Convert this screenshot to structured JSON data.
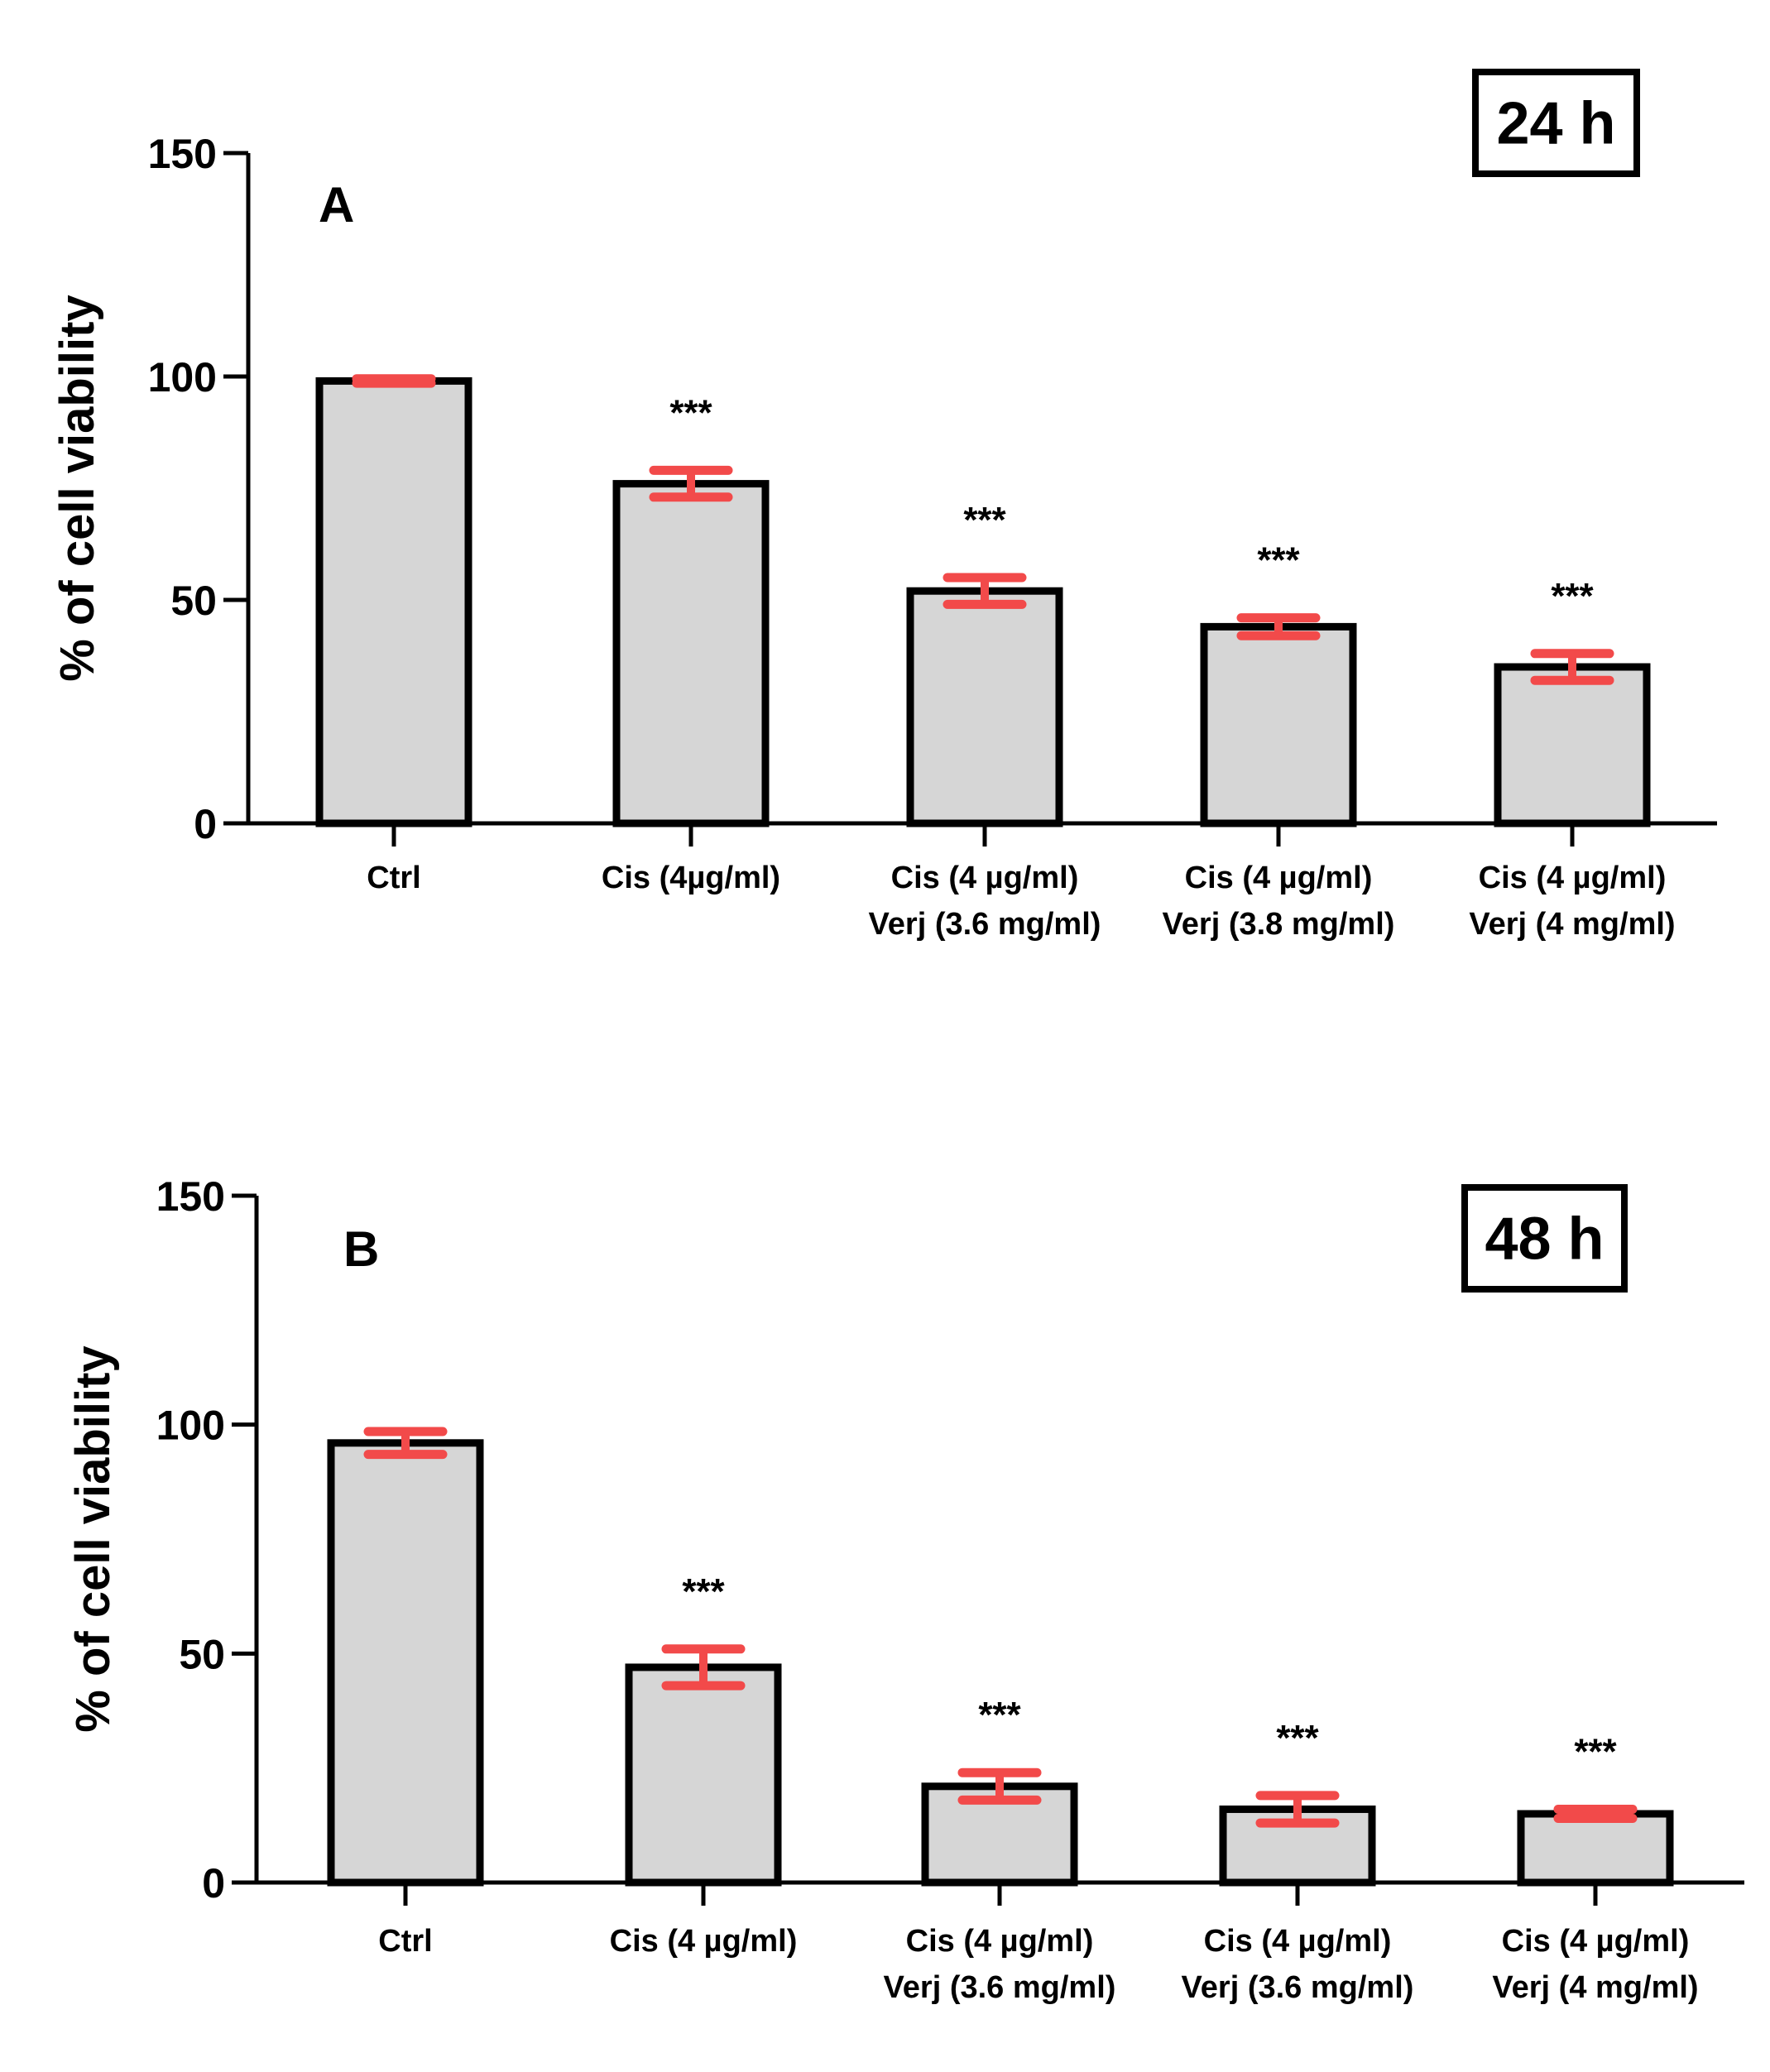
{
  "chart_data": [
    {
      "type": "bar",
      "panel": "A",
      "time_label": "24 h",
      "ylabel": "% of cell viability",
      "ylim": [
        0,
        150
      ],
      "yticks": [
        "0",
        "50",
        "100",
        "150"
      ],
      "categories": [
        [
          "Ctrl"
        ],
        [
          "Cis (4µg/ml)"
        ],
        [
          "Cis (4 µg/ml)",
          "Verj (3.6 mg/ml)"
        ],
        [
          "Cis (4 µg/ml)",
          "Verj (3.8 mg/ml)"
        ],
        [
          "Cis (4 µg/ml)",
          "Verj (4 mg/ml)"
        ]
      ],
      "values": [
        99,
        76,
        52,
        44,
        35
      ],
      "errors": [
        0.5,
        3,
        3,
        2,
        3
      ],
      "significance": [
        "",
        "***",
        "***",
        "***",
        "***"
      ]
    },
    {
      "type": "bar",
      "panel": "B",
      "time_label": "48 h",
      "ylabel": "% of cell viability",
      "ylim": [
        0,
        150
      ],
      "yticks": [
        "0",
        "50",
        "100",
        "150"
      ],
      "categories": [
        [
          "Ctrl"
        ],
        [
          "Cis (4 µg/ml)"
        ],
        [
          "Cis (4 µg/ml)",
          "Verj (3.6 mg/ml)"
        ],
        [
          "Cis (4 µg/ml)",
          "Verj (3.6 mg/ml)"
        ],
        [
          "Cis (4 µg/ml)",
          "Verj (4 mg/ml)"
        ]
      ],
      "values": [
        96,
        47,
        21,
        16,
        15
      ],
      "errors": [
        2.5,
        4,
        3,
        3,
        1
      ],
      "significance": [
        "",
        "***",
        "***",
        "***",
        "***"
      ]
    }
  ],
  "colors": {
    "bar_fill": "#d6d6d6",
    "bar_stroke": "#000000",
    "error_bar": "#f24a4a"
  }
}
